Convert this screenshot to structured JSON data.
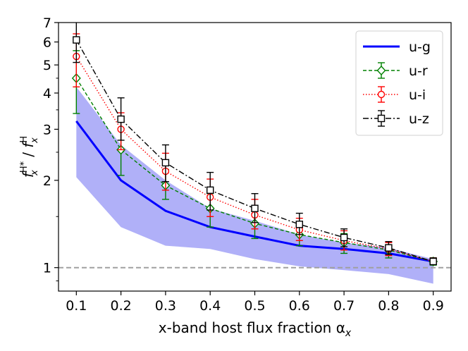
{
  "chart_data": {
    "type": "line",
    "title": "",
    "xlabel": "x-band host flux fraction α",
    "xlabel_sub": "x",
    "ylabel_parts": {
      "f": "f",
      "sub": "x",
      "sup_num": "H*",
      "slash": " / ",
      "sup_den": "H"
    },
    "yscale": "log",
    "xlim": [
      0.06,
      0.94
    ],
    "ylim": [
      0.83,
      7.0
    ],
    "x_ticks": [
      "0.1",
      "0.2",
      "0.3",
      "0.4",
      "0.5",
      "0.6",
      "0.7",
      "0.8",
      "0.9"
    ],
    "y_ticks": [
      "1",
      "2",
      "3",
      "4",
      "5",
      "6",
      "7"
    ],
    "legend_position": "top-right",
    "reference_line": {
      "y": 1.0,
      "color": "#a0a0a0"
    },
    "x": [
      0.1,
      0.2,
      0.3,
      0.4,
      0.5,
      0.6,
      0.7,
      0.8,
      0.9
    ],
    "band": {
      "series": "u-g",
      "color": "#b0b0f8",
      "lower": [
        2.05,
        1.38,
        1.19,
        1.16,
        1.07,
        1.01,
        0.98,
        0.95,
        0.88
      ],
      "upper": [
        4.2,
        2.65,
        2.0,
        1.6,
        1.45,
        1.3,
        1.22,
        1.17,
        1.07
      ]
    },
    "series": [
      {
        "name": "u-g",
        "color": "#0000ff",
        "style": "solid",
        "marker": "none",
        "values": [
          3.2,
          2.0,
          1.57,
          1.38,
          1.28,
          1.19,
          1.16,
          1.12,
          1.05
        ]
      },
      {
        "name": "u-r",
        "color": "#008000",
        "style": "dashed",
        "marker": "diamond",
        "values": [
          4.5,
          2.55,
          1.92,
          1.6,
          1.42,
          1.3,
          1.22,
          1.15,
          1.05
        ],
        "err_low": [
          3.4,
          2.08,
          1.72,
          1.38,
          1.26,
          1.19,
          1.12,
          1.08,
          1.02
        ],
        "err_high": [
          5.6,
          3.02,
          2.18,
          1.8,
          1.58,
          1.42,
          1.31,
          1.2,
          1.08
        ]
      },
      {
        "name": "u-i",
        "color": "#ff0000",
        "style": "dotted",
        "marker": "circle",
        "values": [
          5.35,
          3.0,
          2.15,
          1.75,
          1.52,
          1.35,
          1.24,
          1.16,
          1.05
        ],
        "err_low": [
          4.2,
          2.55,
          1.85,
          1.5,
          1.36,
          1.24,
          1.15,
          1.1,
          1.03
        ],
        "err_high": [
          6.4,
          3.42,
          2.48,
          2.02,
          1.72,
          1.48,
          1.34,
          1.22,
          1.08
        ]
      },
      {
        "name": "u-z",
        "color": "#000000",
        "style": "dashdot",
        "marker": "square",
        "values": [
          6.1,
          3.25,
          2.3,
          1.85,
          1.6,
          1.41,
          1.27,
          1.17,
          1.05
        ],
        "err_low": [
          5.1,
          2.75,
          1.98,
          1.58,
          1.43,
          1.3,
          1.18,
          1.11,
          1.03
        ],
        "err_high": [
          7.3,
          3.85,
          2.65,
          2.13,
          1.8,
          1.54,
          1.36,
          1.23,
          1.08
        ]
      }
    ]
  }
}
